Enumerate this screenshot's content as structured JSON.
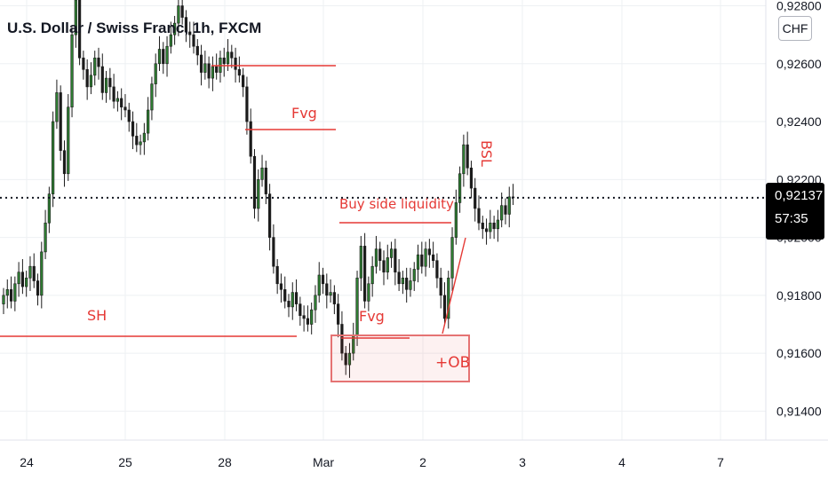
{
  "title": "U.S. Dollar / Swiss Franc, 1h, FXCM",
  "currency_badge": "CHF",
  "last_price": "0,92137",
  "countdown": "57:35",
  "colors": {
    "up": "#2e7d32",
    "down": "#1b1b1b",
    "annotation": "#e53935",
    "grid": "#eef0f3"
  },
  "chart_data": {
    "type": "candlestick",
    "instrument": "USD/CHF",
    "timeframe": "1h",
    "ylim": [
      0.913,
      0.9282
    ],
    "y_ticks": [
      "0,92800",
      "0,92600",
      "0,92400",
      "0,92200",
      "0,92000",
      "0,91800",
      "0,91600",
      "0,91400"
    ],
    "y_tick_values": [
      0.928,
      0.926,
      0.924,
      0.922,
      0.92,
      0.918,
      0.916,
      0.914
    ],
    "x_ticks": [
      "24",
      "25",
      "28",
      "Mar",
      "2",
      "3",
      "4",
      "7"
    ],
    "current_price": 0.92137,
    "series_close": [
      0.918,
      0.9182,
      0.9178,
      0.9184,
      0.9188,
      0.9183,
      0.9186,
      0.919,
      0.9185,
      0.918,
      0.9195,
      0.9205,
      0.9215,
      0.924,
      0.925,
      0.923,
      0.9222,
      0.9245,
      0.927,
      0.9282,
      0.9262,
      0.9258,
      0.9252,
      0.9256,
      0.9262,
      0.9259,
      0.925,
      0.9255,
      0.9252,
      0.9247,
      0.9248,
      0.9245,
      0.9244,
      0.924,
      0.9235,
      0.9232,
      0.9233,
      0.9236,
      0.9244,
      0.9253,
      0.926,
      0.9265,
      0.926,
      0.9266,
      0.927,
      0.9274,
      0.928,
      0.9276,
      0.9271,
      0.927,
      0.9266,
      0.9263,
      0.9257,
      0.926,
      0.9255,
      0.9259,
      0.9257,
      0.9262,
      0.926,
      0.9264,
      0.9262,
      0.9258,
      0.9256,
      0.9252,
      0.924,
      0.9228,
      0.921,
      0.922,
      0.9224,
      0.9215,
      0.92,
      0.919,
      0.9184,
      0.9182,
      0.9178,
      0.9176,
      0.9181,
      0.9177,
      0.9173,
      0.9172,
      0.917,
      0.9175,
      0.918,
      0.9187,
      0.9184,
      0.918,
      0.9181,
      0.9177,
      0.917,
      0.916,
      0.9156,
      0.916,
      0.9166,
      0.9186,
      0.9197,
      0.9178,
      0.9184,
      0.919,
      0.9196,
      0.9192,
      0.9188,
      0.9193,
      0.9196,
      0.9188,
      0.9184,
      0.9186,
      0.9182,
      0.9185,
      0.9189,
      0.9194,
      0.919,
      0.9196,
      0.9194,
      0.9192,
      0.9186,
      0.918,
      0.9172,
      0.9186,
      0.92,
      0.9212,
      0.9222,
      0.9232,
      0.9224,
      0.9217,
      0.921,
      0.9205,
      0.9203,
      0.9202,
      0.9205,
      0.9203,
      0.9206,
      0.9211,
      0.9208,
      0.9214,
      0.92137
    ]
  },
  "annotations": {
    "sh": "SH",
    "fvg_upper": "Fvg",
    "buy_side_liquidity": "Buy side liquidity",
    "bsl": "BSL",
    "fvg_lower": "Fvg",
    "ob": "+OB"
  }
}
